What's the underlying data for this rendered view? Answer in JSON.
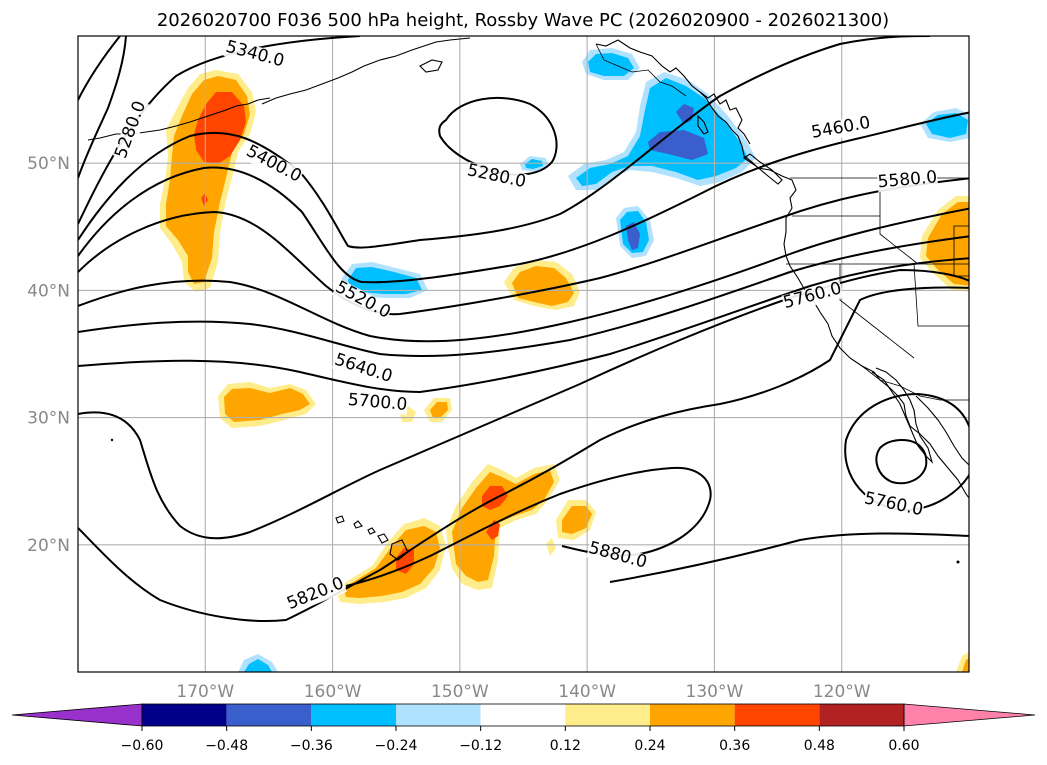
{
  "chart_data": {
    "type": "contour_map",
    "title": "2026020700 F036 500 hPa height, Rossby Wave PC (2026020900 - 2026021300)",
    "map": {
      "lon_range": [
        -180,
        -110
      ],
      "lat_range": [
        10,
        60
      ],
      "lon_ticks": [
        -170,
        -160,
        -150,
        -140,
        -130,
        -120
      ],
      "lon_tick_labels": [
        "170°W",
        "160°W",
        "150°W",
        "140°W",
        "130°W",
        "120°W"
      ],
      "lat_ticks": [
        20,
        30,
        40,
        50
      ],
      "lat_tick_labels": [
        "20°N",
        "30°N",
        "40°N",
        "50°N"
      ],
      "grid": true
    },
    "height_contours": {
      "variable": "500 hPa geopotential height",
      "levels_labeled": [
        "5280.0",
        "5340.0",
        "5400.0",
        "5460.0",
        "5520.0",
        "5580.0",
        "5640.0",
        "5700.0",
        "5760.0",
        "5820.0",
        "5880.0"
      ],
      "contour_labels": [
        {
          "text": "5340.0",
          "lon": -166.2,
          "lat": 58.2
        },
        {
          "text": "5280.0",
          "lon": -175.5,
          "lat": 52.5
        },
        {
          "text": "5400.0",
          "lon": -164.8,
          "lat": 49.6
        },
        {
          "text": "5280.0",
          "lon": -147.2,
          "lat": 48.6
        },
        {
          "text": "5460.0",
          "lon": -120.0,
          "lat": 52.4
        },
        {
          "text": "5580.0",
          "lon": -114.8,
          "lat": 48.3
        },
        {
          "text": "5520.0",
          "lon": -157.8,
          "lat": 38.9
        },
        {
          "text": "5760.0",
          "lon": -122.2,
          "lat": 39.2
        },
        {
          "text": "5640.0",
          "lon": -157.7,
          "lat": 33.5
        },
        {
          "text": "5700.0",
          "lon": -156.5,
          "lat": 30.8
        },
        {
          "text": "5760.0",
          "lon": -116.0,
          "lat": 22.8
        },
        {
          "text": "5880.0",
          "lon": -137.7,
          "lat": 18.8
        },
        {
          "text": "5820.0",
          "lon": -161.2,
          "lat": 15.8
        }
      ]
    },
    "shaded_field": {
      "variable": "Rossby Wave PC",
      "period": "2026020900 - 2026021300",
      "colorbar": {
        "levels": [
          -0.72,
          -0.6,
          -0.48,
          -0.36,
          -0.24,
          -0.12,
          0.12,
          0.24,
          0.36,
          0.48,
          0.6,
          0.72
        ],
        "tick_values": [
          -0.6,
          -0.48,
          -0.36,
          -0.24,
          -0.12,
          0.12,
          0.24,
          0.36,
          0.48,
          0.6
        ],
        "tick_labels": [
          "−0.60",
          "−0.48",
          "−0.36",
          "−0.24",
          "−0.12",
          "0.12",
          "0.24",
          "0.36",
          "0.48",
          "0.60"
        ],
        "colors": [
          "#9932cc",
          "#00008b",
          "#3a5fcd",
          "#00bfff",
          "#b0e2ff",
          "#ffffff",
          "#ffec8b",
          "#ffa500",
          "#ff4500",
          "#b22222",
          "#ff82ab"
        ],
        "extend": "both"
      },
      "positive_regions": [
        {
          "center_lon": -170.0,
          "center_lat": 50.0,
          "max_value": 0.4
        },
        {
          "center_lon": -144.3,
          "center_lat": 40.2,
          "max_value": 0.3
        },
        {
          "center_lon": -167.3,
          "center_lat": 31.0,
          "max_value": 0.3
        },
        {
          "center_lon": -146.5,
          "center_lat": 22.0,
          "max_value": 0.4
        },
        {
          "center_lon": -153.5,
          "center_lat": 18.5,
          "max_value": 0.4
        },
        {
          "center_lon": -111.0,
          "center_lat": 42.5,
          "max_value": 0.3
        },
        {
          "center_lon": -141.5,
          "center_lat": 22.0,
          "max_value": 0.3
        },
        {
          "center_lon": -150.5,
          "center_lat": 30.5,
          "max_value": 0.25
        }
      ],
      "negative_regions": [
        {
          "center_lon": -131.5,
          "center_lat": 53.0,
          "min_value": -0.45
        },
        {
          "center_lon": -136.5,
          "center_lat": 44.5,
          "min_value": -0.4
        },
        {
          "center_lon": -155.0,
          "center_lat": 40.8,
          "min_value": -0.3
        },
        {
          "center_lon": -138.0,
          "center_lat": 58.0,
          "min_value": -0.3
        },
        {
          "center_lon": -112.0,
          "center_lat": 53.0,
          "min_value": -0.3
        },
        {
          "center_lon": -143.8,
          "center_lat": 49.8,
          "min_value": -0.25
        },
        {
          "center_lon": -166.0,
          "center_lat": 10.5,
          "min_value": -0.3
        }
      ]
    }
  }
}
